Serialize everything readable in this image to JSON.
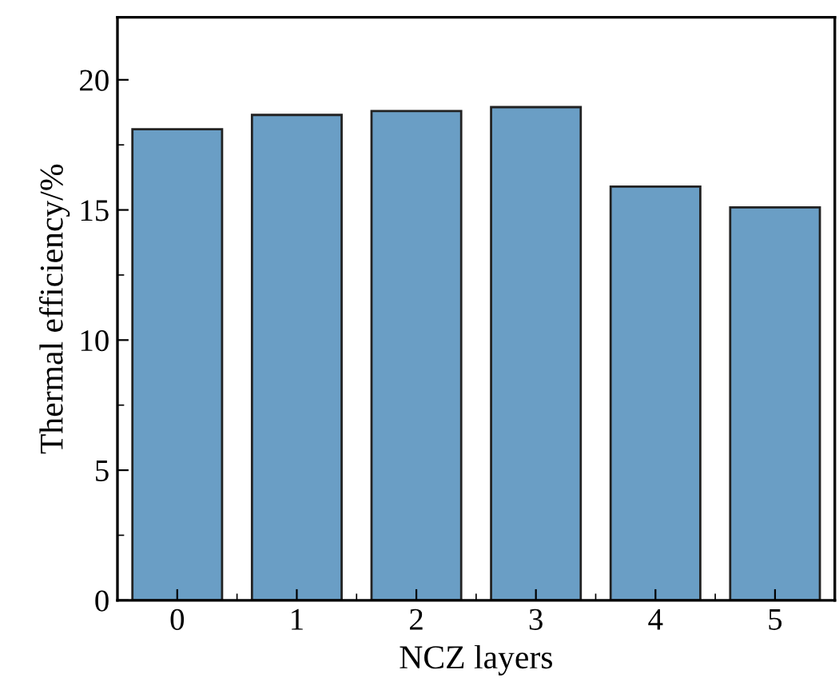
{
  "chart_data": {
    "type": "bar",
    "xlabel": "NCZ layers",
    "ylabel": "Thermal efficiency/%",
    "categories": [
      "0",
      "1",
      "2",
      "3",
      "4",
      "5"
    ],
    "values": [
      18.1,
      18.65,
      18.8,
      18.95,
      15.9,
      15.1
    ],
    "color": "#6a9ec5",
    "ylim": [
      0,
      22.4
    ],
    "yticks": [
      0,
      5,
      10,
      15,
      20
    ],
    "grid": false,
    "legend": false
  }
}
